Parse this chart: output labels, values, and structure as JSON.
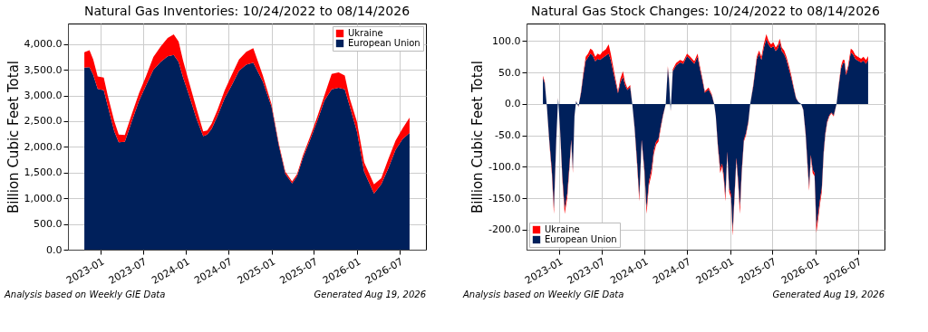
{
  "chart_data": [
    {
      "type": "area",
      "title": "Natural Gas Inventories: 10/24/2022 to 08/14/2026",
      "ylabel": "Billion Cubic Feet Total",
      "stacked": true,
      "grid": true,
      "legend": "top right",
      "x": [
        "2022-10-24",
        "2022-11-15",
        "2022-12-01",
        "2022-12-20",
        "2023-01-15",
        "2023-02-01",
        "2023-03-01",
        "2023-03-20",
        "2023-04-15",
        "2023-05-15",
        "2023-06-15",
        "2023-07-15",
        "2023-08-15",
        "2023-09-15",
        "2023-10-15",
        "2023-11-10",
        "2023-12-01",
        "2023-12-20",
        "2024-01-15",
        "2024-02-15",
        "2024-03-15",
        "2024-04-01",
        "2024-04-20",
        "2024-05-15",
        "2024-06-15",
        "2024-07-15",
        "2024-08-15",
        "2024-09-15",
        "2024-10-15",
        "2024-11-25",
        "2025-01-01",
        "2025-02-01",
        "2025-03-01",
        "2025-03-30",
        "2025-04-20",
        "2025-05-15",
        "2025-06-15",
        "2025-07-15",
        "2025-08-15",
        "2025-09-15",
        "2025-10-15",
        "2025-11-10",
        "2025-12-01",
        "2026-01-01",
        "2026-02-01",
        "2026-03-15",
        "2026-04-15",
        "2026-05-15",
        "2026-06-15",
        "2026-07-15",
        "2026-08-14"
      ],
      "xlim": [
        "2022-08-15",
        "2026-10-23"
      ],
      "xticks": [
        "2023-01",
        "2023-07",
        "2024-01",
        "2024-07",
        "2025-01",
        "2025-07",
        "2026-01",
        "2026-07"
      ],
      "ylim": [
        0,
        4400
      ],
      "yticks": [
        {
          "value": 0,
          "label": "0.0"
        },
        {
          "value": 500,
          "label": "500.0"
        },
        {
          "value": 1000,
          "label": "1,000.0"
        },
        {
          "value": 1500,
          "label": "1,500.0"
        },
        {
          "value": 2000,
          "label": "2,000.0"
        },
        {
          "value": 2500,
          "label": "2,500.0"
        },
        {
          "value": 3000,
          "label": "3,000.0"
        },
        {
          "value": 3500,
          "label": "3,500.0"
        },
        {
          "value": 4000,
          "label": "4,000.0"
        }
      ],
      "series": [
        {
          "name": "European Union",
          "color": "#00205b",
          "values": [
            3540,
            3550,
            3400,
            3130,
            3100,
            2800,
            2300,
            2090,
            2100,
            2500,
            2900,
            3200,
            3500,
            3650,
            3760,
            3790,
            3650,
            3350,
            3000,
            2550,
            2210,
            2240,
            2350,
            2600,
            2950,
            3200,
            3480,
            3600,
            3640,
            3270,
            2780,
            2030,
            1480,
            1290,
            1430,
            1780,
            2140,
            2500,
            2900,
            3120,
            3150,
            3120,
            2800,
            2300,
            1520,
            1090,
            1270,
            1580,
            1940,
            2150,
            2270
          ]
        },
        {
          "name": "Ukraine",
          "color": "#ff0000",
          "values": [
            300,
            330,
            300,
            240,
            250,
            200,
            200,
            150,
            130,
            140,
            150,
            180,
            250,
            300,
            360,
            400,
            400,
            330,
            250,
            200,
            90,
            80,
            100,
            120,
            150,
            200,
            220,
            250,
            280,
            120,
            50,
            40,
            40,
            40,
            40,
            50,
            60,
            80,
            100,
            300,
            300,
            270,
            150,
            190,
            180,
            180,
            120,
            180,
            180,
            210,
            300
          ]
        }
      ],
      "annotations": [
        "Analysis based on Weekly GIE Data",
        "Generated Aug 19, 2026"
      ]
    },
    {
      "type": "area",
      "title": "Natural Gas Stock Changes: 10/24/2022 to 08/14/2026",
      "ylabel": "Billion Cubic Feet Total",
      "stacked": true,
      "grid": true,
      "legend": "bottom left",
      "x": [
        "2022-10-24",
        "2022-11-01",
        "2022-11-10",
        "2022-11-20",
        "2022-12-01",
        "2022-12-10",
        "2022-12-20",
        "2022-12-28",
        "2023-01-05",
        "2023-01-15",
        "2023-01-25",
        "2023-02-05",
        "2023-02-15",
        "2023-02-22",
        "2023-03-01",
        "2023-03-08",
        "2023-03-15",
        "2023-03-25",
        "2023-04-05",
        "2023-04-15",
        "2023-04-25",
        "2023-05-05",
        "2023-05-15",
        "2023-05-25",
        "2023-06-05",
        "2023-06-15",
        "2023-06-25",
        "2023-07-05",
        "2023-07-20",
        "2023-08-01",
        "2023-08-10",
        "2023-08-20",
        "2023-08-30",
        "2023-09-10",
        "2023-09-20",
        "2023-10-01",
        "2023-10-10",
        "2023-10-20",
        "2023-11-01",
        "2023-11-10",
        "2023-11-20",
        "2023-12-01",
        "2023-12-10",
        "2023-12-20",
        "2024-01-01",
        "2024-01-10",
        "2024-01-20",
        "2024-02-01",
        "2024-02-10",
        "2024-02-20",
        "2024-03-01",
        "2024-03-10",
        "2024-03-20",
        "2024-04-01",
        "2024-04-10",
        "2024-04-15",
        "2024-04-22",
        "2024-05-01",
        "2024-05-15",
        "2024-06-01",
        "2024-06-15",
        "2024-07-01",
        "2024-07-15",
        "2024-08-01",
        "2024-08-15",
        "2024-08-25",
        "2024-09-05",
        "2024-09-15",
        "2024-10-01",
        "2024-10-15",
        "2024-10-25",
        "2024-11-01",
        "2024-11-10",
        "2024-11-20",
        "2024-11-28",
        "2024-12-05",
        "2024-12-12",
        "2024-12-20",
        "2024-12-28",
        "2025-01-05",
        "2025-01-12",
        "2025-01-20",
        "2025-01-28",
        "2025-02-05",
        "2025-02-12",
        "2025-02-20",
        "2025-03-01",
        "2025-03-10",
        "2025-03-20",
        "2025-03-28",
        "2025-04-10",
        "2025-04-25",
        "2025-05-05",
        "2025-05-15",
        "2025-05-25",
        "2025-06-05",
        "2025-06-15",
        "2025-06-25",
        "2025-07-05",
        "2025-07-15",
        "2025-07-25",
        "2025-08-01",
        "2025-08-10",
        "2025-08-20",
        "2025-08-30",
        "2025-09-10",
        "2025-09-20",
        "2025-10-01",
        "2025-10-10",
        "2025-10-20",
        "2025-11-01",
        "2025-11-10",
        "2025-11-20",
        "2025-11-28",
        "2025-12-05",
        "2025-12-12",
        "2025-12-20",
        "2025-12-28",
        "2026-01-05",
        "2026-01-12",
        "2026-01-20",
        "2026-01-28",
        "2026-02-05",
        "2026-02-12",
        "2026-02-20",
        "2026-03-01",
        "2026-03-10",
        "2026-03-20",
        "2026-04-01",
        "2026-04-10",
        "2026-04-20",
        "2026-04-28",
        "2026-05-05",
        "2026-05-12",
        "2026-05-20",
        "2026-06-01",
        "2026-06-10",
        "2026-06-20",
        "2026-07-01",
        "2026-07-15",
        "2026-07-25",
        "2026-08-05",
        "2026-08-14"
      ],
      "xlim": [
        "2022-08-15",
        "2026-10-23"
      ],
      "xticks": [
        "2023-01",
        "2023-07",
        "2024-01",
        "2024-07",
        "2025-01",
        "2025-07",
        "2026-01",
        "2026-07"
      ],
      "ylim": [
        -232,
        128
      ],
      "yticks": [
        {
          "value": -200,
          "label": "-200.0"
        },
        {
          "value": -150,
          "label": "-150.0"
        },
        {
          "value": -100,
          "label": "-100.0"
        },
        {
          "value": -50,
          "label": "-50.0"
        },
        {
          "value": 0,
          "label": "0.0"
        },
        {
          "value": 50,
          "label": "50.0"
        },
        {
          "value": 100,
          "label": "100.0"
        }
      ],
      "series": [
        {
          "name": "European Union",
          "color": "#00205b",
          "values": [
            42,
            33,
            -4,
            -57,
            -105,
            -167,
            -57,
            9,
            -38,
            -115,
            -167,
            -143,
            -95,
            -57,
            -105,
            -19,
            4,
            -4,
            18,
            46,
            69,
            74,
            80,
            77,
            68,
            72,
            70,
            73,
            77,
            80,
            70,
            52,
            35,
            17,
            34,
            43,
            30,
            22,
            27,
            0,
            -38,
            -95,
            -148,
            -57,
            -105,
            -167,
            -124,
            -102,
            -74,
            -60,
            -56,
            -37,
            -18,
            0,
            57,
            38,
            -11,
            52,
            61,
            66,
            64,
            76,
            71,
            64,
            75,
            56,
            37,
            18,
            23,
            13,
            0,
            -19,
            -66,
            -104,
            -95,
            -114,
            -147,
            -76,
            -134,
            -144,
            -202,
            -144,
            -86,
            -124,
            -165,
            -105,
            -57,
            -47,
            -28,
            0,
            28,
            71,
            80,
            70,
            89,
            103,
            94,
            89,
            92,
            84,
            89,
            98,
            84,
            79,
            70,
            55,
            41,
            23,
            9,
            3,
            0,
            -9,
            -47,
            -95,
            -132,
            -81,
            -105,
            -110,
            -195,
            -177,
            -153,
            -134,
            -76,
            -47,
            -28,
            -18,
            -14,
            -18,
            0,
            28,
            56,
            65,
            65,
            46,
            56,
            82,
            79,
            72,
            69,
            66,
            69,
            64,
            70
          ]
        },
        {
          "name": "Ukraine",
          "color": "#ff0000",
          "values": [
            3,
            2,
            -1,
            -3,
            -5,
            -8,
            -3,
            1,
            -2,
            -5,
            -8,
            -7,
            -5,
            -3,
            -5,
            -1,
            1,
            -1,
            2,
            4,
            6,
            6,
            8,
            8,
            7,
            8,
            8,
            10,
            10,
            15,
            10,
            8,
            5,
            3,
            6,
            9,
            5,
            3,
            3,
            0,
            -2,
            -5,
            -7,
            -3,
            -5,
            -8,
            -6,
            -8,
            -6,
            -5,
            -4,
            -3,
            -2,
            0,
            3,
            2,
            -1,
            3,
            4,
            4,
            4,
            4,
            4,
            4,
            5,
            4,
            3,
            2,
            3,
            2,
            0,
            -1,
            -4,
            -6,
            -5,
            -6,
            -8,
            -4,
            -6,
            -6,
            -8,
            -6,
            -4,
            -6,
            -10,
            -5,
            -3,
            -3,
            -2,
            0,
            2,
            4,
            5,
            5,
            6,
            8,
            6,
            6,
            6,
            6,
            6,
            6,
            6,
            6,
            5,
            5,
            4,
            2,
            1,
            0,
            0,
            -1,
            -3,
            -5,
            -6,
            -4,
            -5,
            -5,
            -10,
            -8,
            -7,
            -6,
            -4,
            -3,
            -2,
            -2,
            -1,
            -2,
            0,
            2,
            4,
            5,
            5,
            4,
            4,
            6,
            6,
            6,
            6,
            6,
            6,
            6,
            6
          ]
        }
      ],
      "annotations": [
        "Analysis based on Weekly GIE Data",
        "Generated Aug 19, 2026"
      ]
    }
  ]
}
